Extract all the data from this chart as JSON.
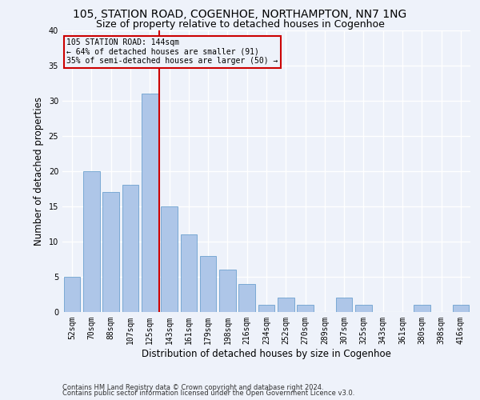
{
  "title1": "105, STATION ROAD, COGENHOE, NORTHAMPTON, NN7 1NG",
  "title2": "Size of property relative to detached houses in Cogenhoe",
  "xlabel": "Distribution of detached houses by size in Cogenhoe",
  "ylabel": "Number of detached properties",
  "bar_labels": [
    "52sqm",
    "70sqm",
    "88sqm",
    "107sqm",
    "125sqm",
    "143sqm",
    "161sqm",
    "179sqm",
    "198sqm",
    "216sqm",
    "234sqm",
    "252sqm",
    "270sqm",
    "289sqm",
    "307sqm",
    "325sqm",
    "343sqm",
    "361sqm",
    "380sqm",
    "398sqm",
    "416sqm"
  ],
  "bar_heights": [
    5,
    20,
    17,
    18,
    31,
    15,
    11,
    8,
    6,
    4,
    1,
    2,
    1,
    0,
    2,
    1,
    0,
    0,
    1,
    0,
    1
  ],
  "bar_color": "#aec6e8",
  "bar_edgecolor": "#5a96c8",
  "property_line_color": "#cc0000",
  "annotation_line1": "105 STATION ROAD: 144sqm",
  "annotation_line2": "← 64% of detached houses are smaller (91)",
  "annotation_line3": "35% of semi-detached houses are larger (50) →",
  "footer1": "Contains HM Land Registry data © Crown copyright and database right 2024.",
  "footer2": "Contains public sector information licensed under the Open Government Licence v3.0.",
  "ylim": [
    0,
    40
  ],
  "yticks": [
    0,
    5,
    10,
    15,
    20,
    25,
    30,
    35,
    40
  ],
  "background_color": "#eef2fa",
  "grid_color": "#ffffff",
  "title_fontsize": 10,
  "subtitle_fontsize": 9,
  "axis_label_fontsize": 8.5,
  "tick_fontsize": 7,
  "footer_fontsize": 6
}
